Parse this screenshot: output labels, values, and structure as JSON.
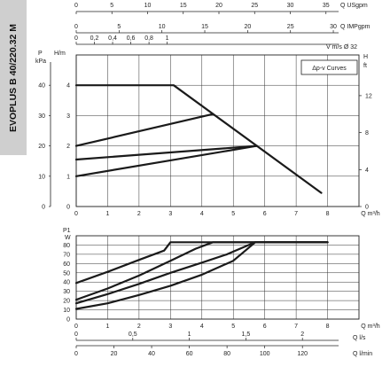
{
  "tab_label": "EVOPLUS B 40/220.32 M",
  "legend": "Δp-v Curves",
  "chart_data": [
    {
      "type": "line",
      "title": "",
      "xlabel": "Q m³/h",
      "ylabel": "H m",
      "xlim": [
        0,
        9
      ],
      "ylim": [
        0,
        5
      ],
      "x_ticks": [
        "0",
        "1",
        "2",
        "3",
        "4",
        "5",
        "6",
        "7",
        "8"
      ],
      "y_ticks": [
        "0",
        "1",
        "2",
        "3",
        "4"
      ],
      "secondary_axes": {
        "left_kpa": {
          "label_top": "P",
          "label_bottom": "kPa",
          "ticks": [
            "0",
            "10",
            "20",
            "30",
            "40"
          ]
        },
        "right_ft": {
          "label_top": "H",
          "label_bottom": "ft",
          "ticks": [
            "0",
            "4",
            "8",
            "12"
          ],
          "values": [
            0,
            4,
            8,
            12
          ]
        },
        "top_usgpm": {
          "label": "Q USgpm",
          "ticks": [
            "0",
            "5",
            "10",
            "15",
            "20",
            "25",
            "30",
            "35"
          ],
          "values": [
            0,
            5,
            10,
            15,
            20,
            25,
            30,
            35
          ]
        },
        "top_impgpm": {
          "label": "Q IMPgpm",
          "ticks": [
            "0",
            "5",
            "10",
            "15",
            "20",
            "25",
            "30"
          ],
          "values": [
            0,
            5,
            10,
            15,
            20,
            25,
            30
          ]
        },
        "top_velocity": {
          "label": "V m/s Ø 32",
          "ticks": [
            "0",
            "0,2",
            "0,4",
            "0,6",
            "0,8",
            "1"
          ],
          "values": [
            0,
            0.2,
            0.4,
            0.6,
            0.8,
            1
          ]
        }
      },
      "grid": true,
      "legend_position": "top-right",
      "series": [
        {
          "x": [
            0,
            3.1,
            7.8
          ],
          "y": [
            4.0,
            4.0,
            0.45
          ]
        },
        {
          "x": [
            0,
            4.35
          ],
          "y": [
            2.0,
            3.05
          ]
        },
        {
          "x": [
            0,
            5.75
          ],
          "y": [
            1.55,
            2.0
          ]
        },
        {
          "x": [
            0,
            5.75
          ],
          "y": [
            1.0,
            2.0
          ]
        }
      ]
    },
    {
      "type": "line",
      "title": "",
      "xlabel": "Q m³/h",
      "ylabel": "P1 W",
      "xlim": [
        0,
        9
      ],
      "ylim": [
        0,
        90
      ],
      "x_ticks": [
        "0",
        "1",
        "2",
        "3",
        "4",
        "5",
        "6",
        "7",
        "8"
      ],
      "y_ticks": [
        "0",
        "10",
        "20",
        "30",
        "40",
        "50",
        "60",
        "70",
        "80"
      ],
      "secondary_axes": {
        "bottom_ls": {
          "label": "Q l/s",
          "ticks": [
            "0",
            "0,5",
            "1",
            "1,5",
            "2"
          ],
          "values": [
            0,
            0.5,
            1,
            1.5,
            2
          ]
        },
        "bottom_lmin": {
          "label": "Q l/min",
          "ticks": [
            "0",
            "20",
            "40",
            "60",
            "80",
            "100",
            "120"
          ],
          "values": [
            0,
            20,
            40,
            60,
            80,
            100,
            120
          ]
        }
      },
      "grid": true,
      "series": [
        {
          "x": [
            0,
            1,
            2,
            2.8,
            3.0,
            8.0
          ],
          "y": [
            39,
            51,
            64,
            74,
            83,
            83
          ]
        },
        {
          "x": [
            0,
            1,
            2,
            3,
            3.8,
            4.35,
            8.0
          ],
          "y": [
            21,
            33,
            47,
            63,
            76,
            83,
            83
          ]
        },
        {
          "x": [
            0,
            1,
            2,
            3,
            4,
            4.8,
            5.7,
            8.0
          ],
          "y": [
            17,
            27,
            38,
            50,
            61,
            70,
            83,
            83
          ]
        },
        {
          "x": [
            0,
            1,
            2,
            3,
            4,
            5,
            5.7,
            8.0
          ],
          "y": [
            11,
            17,
            26,
            36,
            48,
            63,
            83,
            83
          ]
        }
      ]
    }
  ]
}
